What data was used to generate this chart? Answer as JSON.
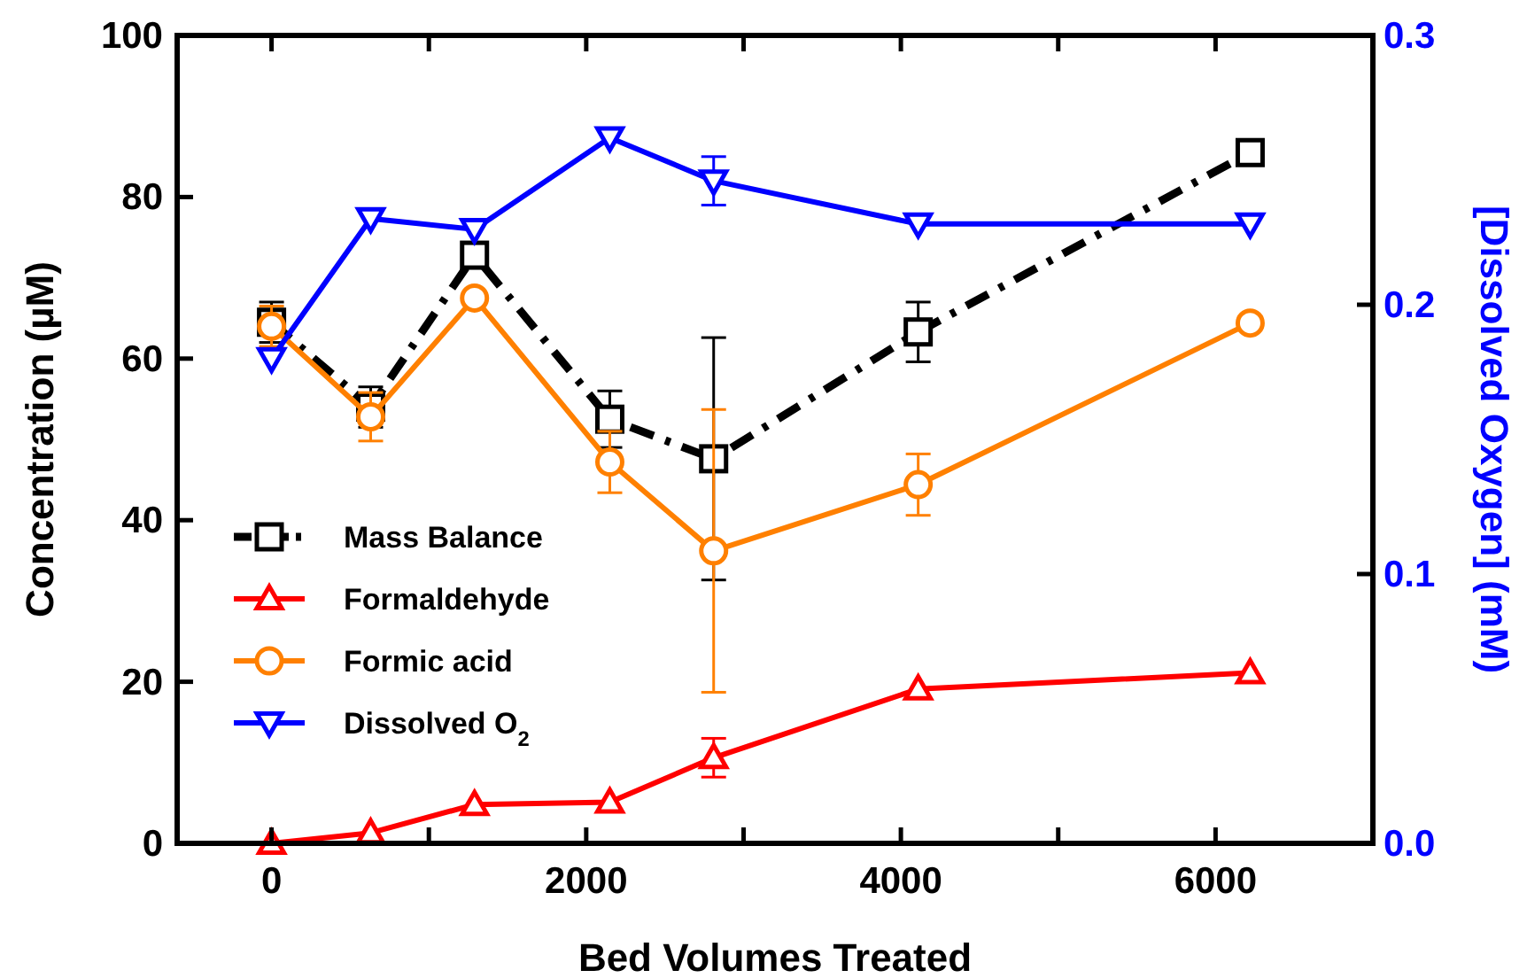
{
  "chart_data": {
    "type": "line",
    "xlabel": "Bed Volumes Treated",
    "ylabel": "Concentration (µM)",
    "y2label": "[Dissolved Oxygen] (mM)",
    "x": [
      0,
      630,
      1290,
      2150,
      2810,
      4110,
      6220
    ],
    "xlim": [
      -600,
      7000
    ],
    "xticks": [
      0,
      {
        "value": 1000,
        "label": null
      },
      2000,
      {
        "value": 3000,
        "label": null
      },
      4000,
      {
        "value": 5000,
        "label": null
      },
      6000
    ],
    "ylim": [
      0,
      100
    ],
    "yticks": [
      0,
      20,
      40,
      60,
      80,
      100
    ],
    "y2lim": [
      0,
      0.3
    ],
    "y2ticks": [
      "0.0",
      0.1,
      0.2,
      0.3
    ],
    "legend": "left",
    "grid": false,
    "series": [
      {
        "name": "Mass Balance",
        "color": "#000000",
        "marker": "square",
        "line_style": "dashdot",
        "values": [
          64.5,
          54,
          72.8,
          52.5,
          47.6,
          63.3,
          85.5
        ],
        "errors": [
          2.5,
          2.5,
          null,
          3.5,
          15,
          3.7,
          null
        ]
      },
      {
        "name": "Formaldehyde",
        "color": "#ff0000",
        "marker": "triangle",
        "line_style": "solid",
        "values": [
          0,
          1.3,
          4.8,
          5.1,
          10.6,
          19.1,
          21.1
        ],
        "errors": [
          null,
          null,
          null,
          null,
          2.4,
          null,
          null
        ]
      },
      {
        "name": "Formic acid",
        "color": "#ff8000",
        "marker": "circle",
        "line_style": "solid",
        "values": [
          64,
          52.8,
          67.5,
          47.2,
          36.2,
          44.4,
          64.4
        ],
        "errors": [
          2.5,
          3,
          null,
          3.8,
          17.5,
          3.8,
          null
        ]
      },
      {
        "name": "Dissolved O$_{2}$",
        "color": "#0000ff",
        "marker": "triangle-down",
        "line_style": "solid",
        "axis": "y2",
        "values": [
          0.18,
          0.232,
          0.228,
          0.262,
          0.246,
          0.23,
          0.23
        ],
        "errors": [
          null,
          null,
          null,
          null,
          0.009,
          null,
          null
        ]
      }
    ]
  }
}
